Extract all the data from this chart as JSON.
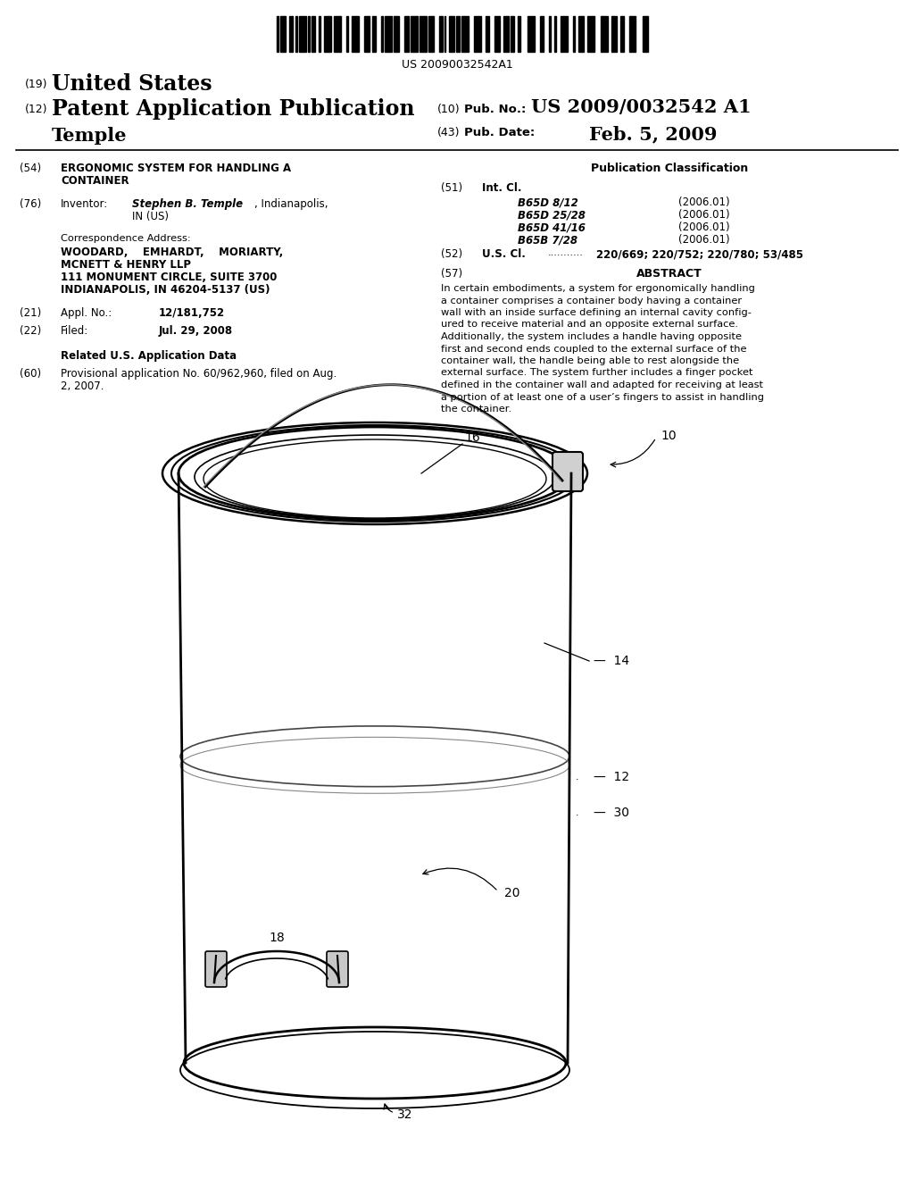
{
  "background_color": "#ffffff",
  "barcode_text": "US 20090032542A1",
  "header_line1_num": "(19)",
  "header_line1_text": "United States",
  "header_line2_num": "(12)",
  "header_line2_text": "Patent Application Publication",
  "header_line2_right_num": "(10)",
  "header_line2_right_label": "Pub. No.:",
  "header_line2_right_value": "US 2009/0032542 A1",
  "header_line3_left": "Temple",
  "header_line3_right_num": "(43)",
  "header_line3_right_label": "Pub. Date:",
  "header_line3_right_value": "Feb. 5, 2009",
  "int_cl_entries": [
    [
      "B65D 8/12",
      "(2006.01)"
    ],
    [
      "B65D 25/28",
      "(2006.01)"
    ],
    [
      "B65D 41/16",
      "(2006.01)"
    ],
    [
      "B65B 7/28",
      "(2006.01)"
    ]
  ],
  "abstract_lines": [
    "In certain embodiments, a system for ergonomically handling",
    "a container comprises a container body having a container",
    "wall with an inside surface defining an internal cavity config-",
    "ured to receive material and an opposite external surface.",
    "Additionally, the system includes a handle having opposite",
    "first and second ends coupled to the external surface of the",
    "container wall, the handle being able to rest alongside the",
    "external surface. The system further includes a finger pocket",
    "defined in the container wall and adapted for receiving at least",
    "a portion of at least one of a user’s fingers to assist in handling",
    "the container."
  ]
}
